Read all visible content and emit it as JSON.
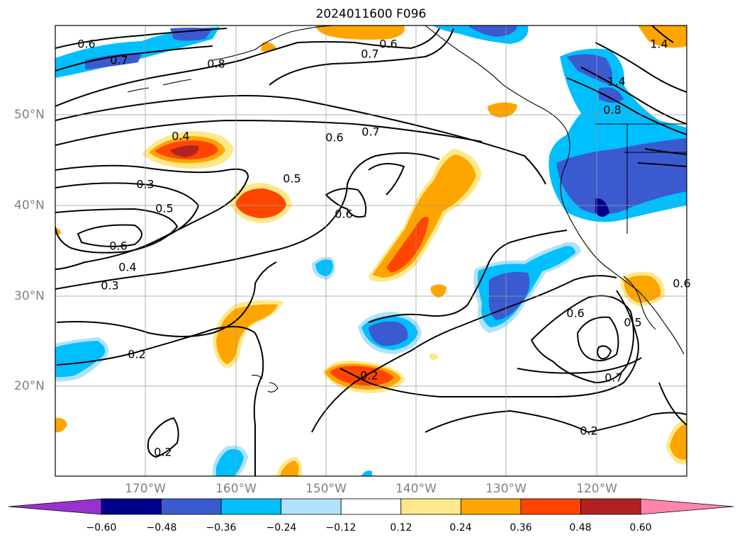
{
  "title": "2024011600 F096",
  "lat_labels": [
    "50°N",
    "40°N",
    "30°N",
    "20°N"
  ],
  "lon_labels": [
    "170°W",
    "160°W",
    "150°W",
    "140°W",
    "130°W",
    "120°W"
  ],
  "colorbar": {
    "ticks": [
      "−0.60",
      "−0.48",
      "−0.36",
      "−0.24",
      "−0.12",
      "0.12",
      "0.24",
      "0.36",
      "0.48",
      "0.60"
    ],
    "colors": [
      "#9932cc",
      "#00008b",
      "#3a5bd0",
      "#00bfff",
      "#b0e2fa",
      "#ffffff",
      "#ffe88a",
      "#ffa500",
      "#ff4500",
      "#b22222",
      "#ff85aa"
    ]
  },
  "contour_labels": [
    "0.6",
    "0.7",
    "0.8",
    "0.6",
    "0.7",
    "1.4",
    "0.6",
    "0.7",
    "0.8",
    "1.4",
    "0.4",
    "0.6",
    "0.5",
    "0.3",
    "0.5",
    "0.6",
    "0.6",
    "0.4",
    "0.3",
    "0.6",
    "0.5",
    "0.2",
    "0.2",
    "0.7",
    "0.2",
    "0.2"
  ]
}
